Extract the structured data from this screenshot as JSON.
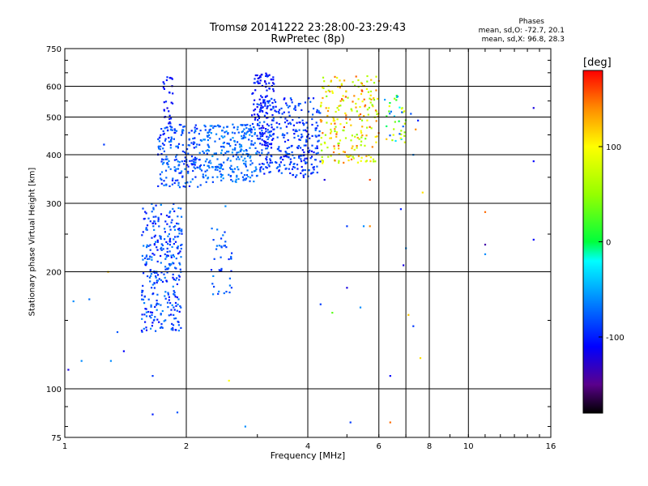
{
  "title": "Tromsø 20141222 23:28:00-23:29:43",
  "subtitle": "RwPretec (8p)",
  "phase_box": {
    "heading": "Phases",
    "line1": "mean, sd,O: -72.7, 20.1",
    "line2": "mean, sd,X:  96.8, 28.3"
  },
  "colorbar": {
    "label": "[deg]",
    "ticks": [
      "100",
      "0",
      "-100"
    ],
    "tick_values": [
      100,
      0,
      -100
    ],
    "range": [
      -180,
      180
    ],
    "colors": [
      "#ff0000",
      "#ff8800",
      "#ffff00",
      "#88ff00",
      "#00ff00",
      "#00ffff",
      "#0088ff",
      "#0000ff",
      "#6600cc",
      "#000000"
    ]
  },
  "chart_data": {
    "type": "scatter",
    "title": "Tromsø 20141222 23:28:00-23:29:43",
    "subtitle": "RwPretec (8p)",
    "xlabel": "Frequency [MHz]",
    "ylabel": "Stationary phase Virtual Height [km]",
    "xscale": "log",
    "yscale": "log",
    "xlim": [
      1,
      16
    ],
    "ylim": [
      75,
      750
    ],
    "xticks": [
      1,
      2,
      4,
      6,
      8,
      10,
      16
    ],
    "xtick_labels": [
      "1",
      "2",
      "4",
      "6",
      "8",
      "10",
      "16"
    ],
    "yticks": [
      75,
      100,
      200,
      300,
      400,
      500,
      600,
      750
    ],
    "ytick_labels": [
      "75",
      "100",
      "200",
      "300",
      "400",
      "500",
      "600",
      "750"
    ],
    "xgrid": [
      2,
      4,
      6,
      7,
      8,
      10
    ],
    "ygrid": [
      100,
      200,
      300,
      400,
      500,
      600
    ],
    "grid": true,
    "color_variable": "phase [deg]",
    "clusters": [
      {
        "x_range": [
          1.55,
          1.95
        ],
        "y_range": [
          140,
          300
        ],
        "phase_range": [
          -110,
          -60
        ],
        "count": 320
      },
      {
        "x_range": [
          1.7,
          2.2
        ],
        "y_range": [
          330,
          480
        ],
        "phase_range": [
          -105,
          -60
        ],
        "count": 200
      },
      {
        "x_range": [
          1.75,
          1.85
        ],
        "y_range": [
          480,
          640
        ],
        "phase_range": [
          -120,
          -90
        ],
        "count": 30
      },
      {
        "x_range": [
          2.3,
          2.6
        ],
        "y_range": [
          175,
          260
        ],
        "phase_range": [
          -100,
          -60
        ],
        "count": 40
      },
      {
        "x_range": [
          2.2,
          3.0
        ],
        "y_range": [
          340,
          480
        ],
        "phase_range": [
          -90,
          -55
        ],
        "count": 260
      },
      {
        "x_range": [
          2.9,
          3.3
        ],
        "y_range": [
          420,
          650
        ],
        "phase_range": [
          -120,
          -90
        ],
        "count": 120
      },
      {
        "x_range": [
          3.0,
          4.3
        ],
        "y_range": [
          350,
          560
        ],
        "phase_range": [
          -110,
          -70
        ],
        "count": 320
      },
      {
        "x_range": [
          4.3,
          6.0
        ],
        "y_range": [
          380,
          640
        ],
        "phase_range": [
          40,
          160
        ],
        "count": 220
      },
      {
        "x_range": [
          6.2,
          7.0
        ],
        "y_range": [
          430,
          580
        ],
        "phase_range": [
          -90,
          120
        ],
        "count": 40
      }
    ],
    "sparse_points": [
      {
        "x": 1.05,
        "y": 168,
        "phase": -60
      },
      {
        "x": 1.1,
        "y": 118,
        "phase": -60
      },
      {
        "x": 1.15,
        "y": 170,
        "phase": -70
      },
      {
        "x": 1.3,
        "y": 118,
        "phase": -60
      },
      {
        "x": 1.35,
        "y": 140,
        "phase": -80
      },
      {
        "x": 1.4,
        "y": 125,
        "phase": -110
      },
      {
        "x": 1.28,
        "y": 200,
        "phase": 120
      },
      {
        "x": 1.25,
        "y": 425,
        "phase": -90
      },
      {
        "x": 1.02,
        "y": 112,
        "phase": -120
      },
      {
        "x": 1.65,
        "y": 108,
        "phase": -90
      },
      {
        "x": 1.65,
        "y": 86,
        "phase": -100
      },
      {
        "x": 1.9,
        "y": 87,
        "phase": -80
      },
      {
        "x": 2.55,
        "y": 105,
        "phase": 100
      },
      {
        "x": 2.8,
        "y": 80,
        "phase": -60
      },
      {
        "x": 2.5,
        "y": 295,
        "phase": -60
      },
      {
        "x": 4.3,
        "y": 165,
        "phase": -90
      },
      {
        "x": 4.6,
        "y": 157,
        "phase": 30
      },
      {
        "x": 5.0,
        "y": 182,
        "phase": -120
      },
      {
        "x": 5.4,
        "y": 162,
        "phase": -60
      },
      {
        "x": 5.0,
        "y": 262,
        "phase": -90
      },
      {
        "x": 5.5,
        "y": 262,
        "phase": -60
      },
      {
        "x": 5.7,
        "y": 262,
        "phase": 140
      },
      {
        "x": 4.4,
        "y": 345,
        "phase": -120
      },
      {
        "x": 5.7,
        "y": 345,
        "phase": 160
      },
      {
        "x": 5.1,
        "y": 82,
        "phase": -90
      },
      {
        "x": 6.4,
        "y": 108,
        "phase": -110
      },
      {
        "x": 6.4,
        "y": 82,
        "phase": 150
      },
      {
        "x": 6.9,
        "y": 208,
        "phase": -120
      },
      {
        "x": 7.0,
        "y": 230,
        "phase": -60
      },
      {
        "x": 7.1,
        "y": 155,
        "phase": 120
      },
      {
        "x": 7.3,
        "y": 145,
        "phase": -90
      },
      {
        "x": 7.6,
        "y": 120,
        "phase": 110
      },
      {
        "x": 7.7,
        "y": 320,
        "phase": 110
      },
      {
        "x": 6.8,
        "y": 290,
        "phase": -100
      },
      {
        "x": 7.5,
        "y": 490,
        "phase": -100
      },
      {
        "x": 7.2,
        "y": 510,
        "phase": -80
      },
      {
        "x": 7.4,
        "y": 465,
        "phase": 140
      },
      {
        "x": 7.3,
        "y": 400,
        "phase": -60
      },
      {
        "x": 11.0,
        "y": 285,
        "phase": 150
      },
      {
        "x": 11.0,
        "y": 235,
        "phase": -140
      },
      {
        "x": 11.0,
        "y": 222,
        "phase": -60
      },
      {
        "x": 14.5,
        "y": 528,
        "phase": -120
      },
      {
        "x": 14.5,
        "y": 385,
        "phase": -110
      },
      {
        "x": 14.5,
        "y": 242,
        "phase": -110
      }
    ]
  }
}
